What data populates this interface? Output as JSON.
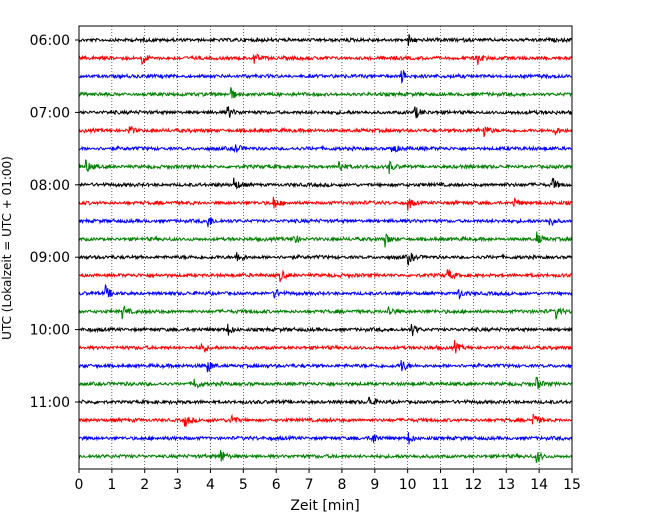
{
  "chart_data": {
    "type": "line",
    "title": "",
    "xlabel": "Zeit  [min]",
    "ylabel": "UTC (Lokalzeit = UTC + 01:00)",
    "xlim": [
      0,
      15
    ],
    "x_ticks": [
      "0",
      "1",
      "2",
      "3",
      "4",
      "5",
      "6",
      "7",
      "8",
      "9",
      "10",
      "11",
      "12",
      "13",
      "14",
      "15"
    ],
    "y_tick_labels": [
      "06:00",
      "07:00",
      "08:00",
      "09:00",
      "10:00",
      "11:00"
    ],
    "grid": "vertical dotted at each minute",
    "legend": "none",
    "trace_colors": [
      "#000000",
      "#ff0000",
      "#0000ff",
      "#008000"
    ],
    "traces": [
      {
        "start": "06:00",
        "color": "#000000",
        "events_min": [
          10.0
        ]
      },
      {
        "start": "06:15",
        "color": "#ff0000",
        "events_min": [
          1.9,
          5.3,
          12.1,
          15.0
        ]
      },
      {
        "start": "06:30",
        "color": "#0000ff",
        "events_min": [
          9.8
        ]
      },
      {
        "start": "06:45",
        "color": "#008000",
        "events_min": [
          4.6
        ]
      },
      {
        "start": "07:00",
        "color": "#000000",
        "events_min": [
          4.5,
          10.2
        ]
      },
      {
        "start": "07:15",
        "color": "#ff0000",
        "events_min": [
          1.5,
          12.3,
          14.4
        ]
      },
      {
        "start": "07:30",
        "color": "#0000ff",
        "events_min": [
          4.7,
          9.5
        ]
      },
      {
        "start": "07:45",
        "color": "#008000",
        "events_min": [
          0.2,
          7.9,
          9.4
        ]
      },
      {
        "start": "08:00",
        "color": "#000000",
        "events_min": [
          4.7,
          14.4
        ]
      },
      {
        "start": "08:15",
        "color": "#ff0000",
        "events_min": [
          5.9,
          10.0,
          13.2
        ]
      },
      {
        "start": "08:30",
        "color": "#0000ff",
        "events_min": [
          3.9,
          14.3
        ]
      },
      {
        "start": "08:45",
        "color": "#008000",
        "events_min": [
          6.5,
          9.3,
          13.9
        ]
      },
      {
        "start": "09:00",
        "color": "#000000",
        "events_min": [
          4.8,
          10.0
        ]
      },
      {
        "start": "09:15",
        "color": "#ff0000",
        "events_min": [
          6.1,
          11.2
        ]
      },
      {
        "start": "09:30",
        "color": "#0000ff",
        "events_min": [
          0.8,
          5.9,
          11.5
        ]
      },
      {
        "start": "09:45",
        "color": "#008000",
        "events_min": [
          1.3,
          9.4,
          14.5
        ]
      },
      {
        "start": "10:00",
        "color": "#000000",
        "events_min": [
          4.5,
          10.1
        ]
      },
      {
        "start": "10:15",
        "color": "#ff0000",
        "events_min": [
          3.7,
          11.4
        ]
      },
      {
        "start": "10:30",
        "color": "#0000ff",
        "events_min": [
          3.9,
          9.8
        ]
      },
      {
        "start": "10:45",
        "color": "#008000",
        "events_min": [
          3.5,
          13.9
        ]
      },
      {
        "start": "11:00",
        "color": "#000000",
        "events_min": [
          8.8
        ]
      },
      {
        "start": "11:15",
        "color": "#ff0000",
        "events_min": [
          3.2,
          4.6,
          13.8
        ]
      },
      {
        "start": "11:30",
        "color": "#0000ff",
        "events_min": [
          8.9,
          10.0
        ]
      },
      {
        "start": "11:45",
        "color": "#008000",
        "events_min": [
          4.3,
          13.9
        ]
      }
    ]
  }
}
